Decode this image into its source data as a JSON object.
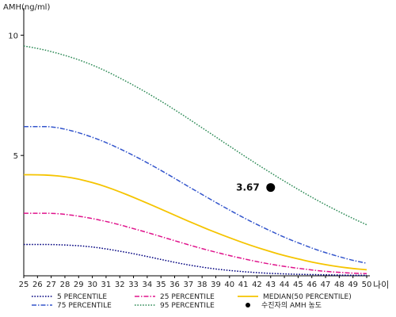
{
  "chart_data": {
    "type": "line",
    "ylabel": "AMH(ng/ml)",
    "xlabel": "나이",
    "x": [
      25,
      26,
      27,
      28,
      29,
      30,
      31,
      32,
      33,
      34,
      35,
      36,
      37,
      38,
      39,
      40,
      41,
      42,
      43,
      44,
      45,
      46,
      47,
      48,
      49,
      50
    ],
    "xlim": [
      25,
      50
    ],
    "ylim": [
      0,
      11
    ],
    "yticks": [
      5,
      10
    ],
    "series": [
      {
        "name": "5 PERCENTILE",
        "color": "#00007f",
        "style": "dotted",
        "values": [
          1.3,
          1.3,
          1.3,
          1.28,
          1.25,
          1.2,
          1.12,
          1.02,
          0.92,
          0.8,
          0.68,
          0.56,
          0.45,
          0.36,
          0.28,
          0.22,
          0.17,
          0.13,
          0.1,
          0.08,
          0.06,
          0.05,
          0.04,
          0.03,
          0.02,
          0.02
        ]
      },
      {
        "name": "25 PERCENTILE",
        "color": "#e0138c",
        "style": "dashdot",
        "values": [
          2.6,
          2.6,
          2.6,
          2.56,
          2.48,
          2.38,
          2.26,
          2.12,
          1.96,
          1.8,
          1.63,
          1.46,
          1.29,
          1.13,
          0.98,
          0.84,
          0.71,
          0.59,
          0.48,
          0.39,
          0.31,
          0.24,
          0.18,
          0.14,
          0.11,
          0.09
        ]
      },
      {
        "name": "75 PERCENTILE",
        "color": "#3355cc",
        "style": "dashdot",
        "values": [
          6.2,
          6.2,
          6.2,
          6.1,
          5.95,
          5.76,
          5.54,
          5.28,
          5.0,
          4.7,
          4.38,
          4.05,
          3.71,
          3.38,
          3.05,
          2.73,
          2.42,
          2.13,
          1.86,
          1.6,
          1.37,
          1.15,
          0.96,
          0.79,
          0.64,
          0.52
        ]
      },
      {
        "name": "95 PERCENTILE",
        "color": "#2e8b57",
        "style": "dotted",
        "values": [
          9.55,
          9.45,
          9.32,
          9.16,
          8.98,
          8.76,
          8.51,
          8.22,
          7.92,
          7.6,
          7.26,
          6.9,
          6.53,
          6.15,
          5.77,
          5.39,
          5.01,
          4.64,
          4.28,
          3.93,
          3.59,
          3.26,
          2.95,
          2.66,
          2.38,
          2.12
        ]
      },
      {
        "name": "MEDIAN(50 PERCENTILE)",
        "color": "#f5c400",
        "style": "solid",
        "values": [
          4.2,
          4.2,
          4.18,
          4.12,
          4.02,
          3.88,
          3.7,
          3.49,
          3.26,
          3.02,
          2.77,
          2.52,
          2.27,
          2.03,
          1.8,
          1.58,
          1.37,
          1.18,
          1.0,
          0.84,
          0.7,
          0.57,
          0.46,
          0.37,
          0.3,
          0.25
        ]
      }
    ],
    "point": {
      "name": "수진자의 AMH 농도",
      "x": 43,
      "y": 3.67,
      "label": "3.67",
      "color": "#000000"
    },
    "legend_position": "bottom"
  }
}
